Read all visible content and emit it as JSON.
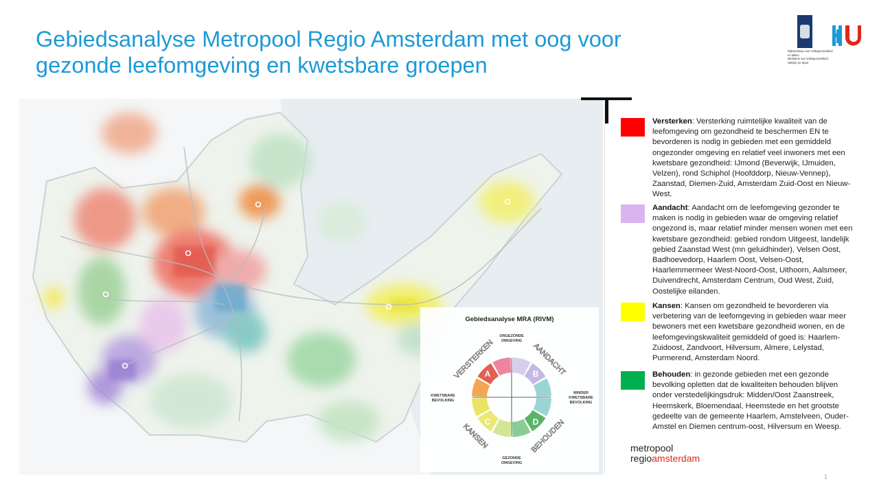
{
  "header": {
    "title_line1": "Gebiedsanalyse Metropool Regio Amsterdam met oog voor",
    "title_line2": "gezonde leefomgeving en kwetsbare groepen"
  },
  "logos": {
    "rijk_lines": [
      "Rijksinstituut voor Volksgezondheid",
      "en Milieu",
      "Ministerie van Volksgezondheid,",
      "Welzijn en Sport"
    ],
    "hu": "HU",
    "mra_line1": "metropool",
    "mra_line2a": "regio",
    "mra_line2b": "amsterdam"
  },
  "compass": {
    "title": "Gebiedsanalyse MRA (RIVM)",
    "top_label": [
      "ONGEZONDE",
      "OMGEVING"
    ],
    "bottom_label": [
      "GEZONDE",
      "OMGEVING"
    ],
    "left_label": [
      "KWETSBARE",
      "BEVOLKING"
    ],
    "right_label": [
      "MINDER",
      "KWETSBARE",
      "BEVOLKING"
    ],
    "quadrants": [
      {
        "letter": "A",
        "word": "VERSTERKEN",
        "color": "#e2564a"
      },
      {
        "letter": "B",
        "word": "AANDACHT",
        "color": "#b7a6d9"
      },
      {
        "letter": "C",
        "word": "KANSEN",
        "color": "#e8e35a"
      },
      {
        "letter": "D",
        "word": "BEHOUDEN",
        "color": "#4fb05e"
      }
    ]
  },
  "legend": [
    {
      "name": "Versterken",
      "color": "#ff0000",
      "text": ": Versterking ruimtelijke kwaliteit van de leefomgeving om gezondheid te beschermen EN te bevorderen is nodig in gebieden met een gemiddeld ongezonder omgeving en relatief veel inwoners met een kwetsbare gezondheid: IJmond (Beverwijk, IJmuiden, Velzen), rond Schiphol (Hoofddorp, Nieuw-Vennep), Zaanstad, Diemen-Zuid, Amsterdam Zuid-Oost en Nieuw-West."
    },
    {
      "name": "Aandacht",
      "color": "#d9b4ef",
      "text": ": Aandacht om de leefomgeving gezonder te maken is nodig in gebieden waar de omgeving relatief ongezond is, maar relatief minder mensen wonen met een kwetsbare gezondheid: gebied rondom Uitgeest, landelijk gebied Zaanstad West (mn geluidhinder), Velsen Oost, Badhoevedorp, Haarlem Oost, Velsen-Oost, Haarlemmermeer West-Noord-Oost, Uithoorn, Aalsmeer, Duivendrecht, Amsterdam Centrum, Oud West, Zuid, Oostelijke eilanden."
    },
    {
      "name": "Kansen",
      "color": "#ffff00",
      "text": ": Kansen om gezondheid te bevorderen via verbetering van de leefomgeving in gebieden waar meer bewoners met een kwetsbare gezondheid wonen, en de leefomgevingskwaliteit gemiddeld of goed is: Haarlem-Zuidoost, Zandvoort, Hilversum, Almere, Lelystad, Purmerend, Amsterdam Noord."
    },
    {
      "name": "Behouden",
      "color": "#00b050",
      "text": ": in gezonde gebieden met een gezonde bevolking opletten dat de kwaliteiten behouden blijven onder verstedelijkingsdruk: Midden/Oost Zaanstreek, Heemskerk, Bloemendaal, Heemstede en het grootste gedeelte van de gemeente Haarlem, Amstelveen, Ouder-Amstel en Diemen centrum-oost, Hilversum en Weesp."
    }
  ],
  "page_number": "1"
}
